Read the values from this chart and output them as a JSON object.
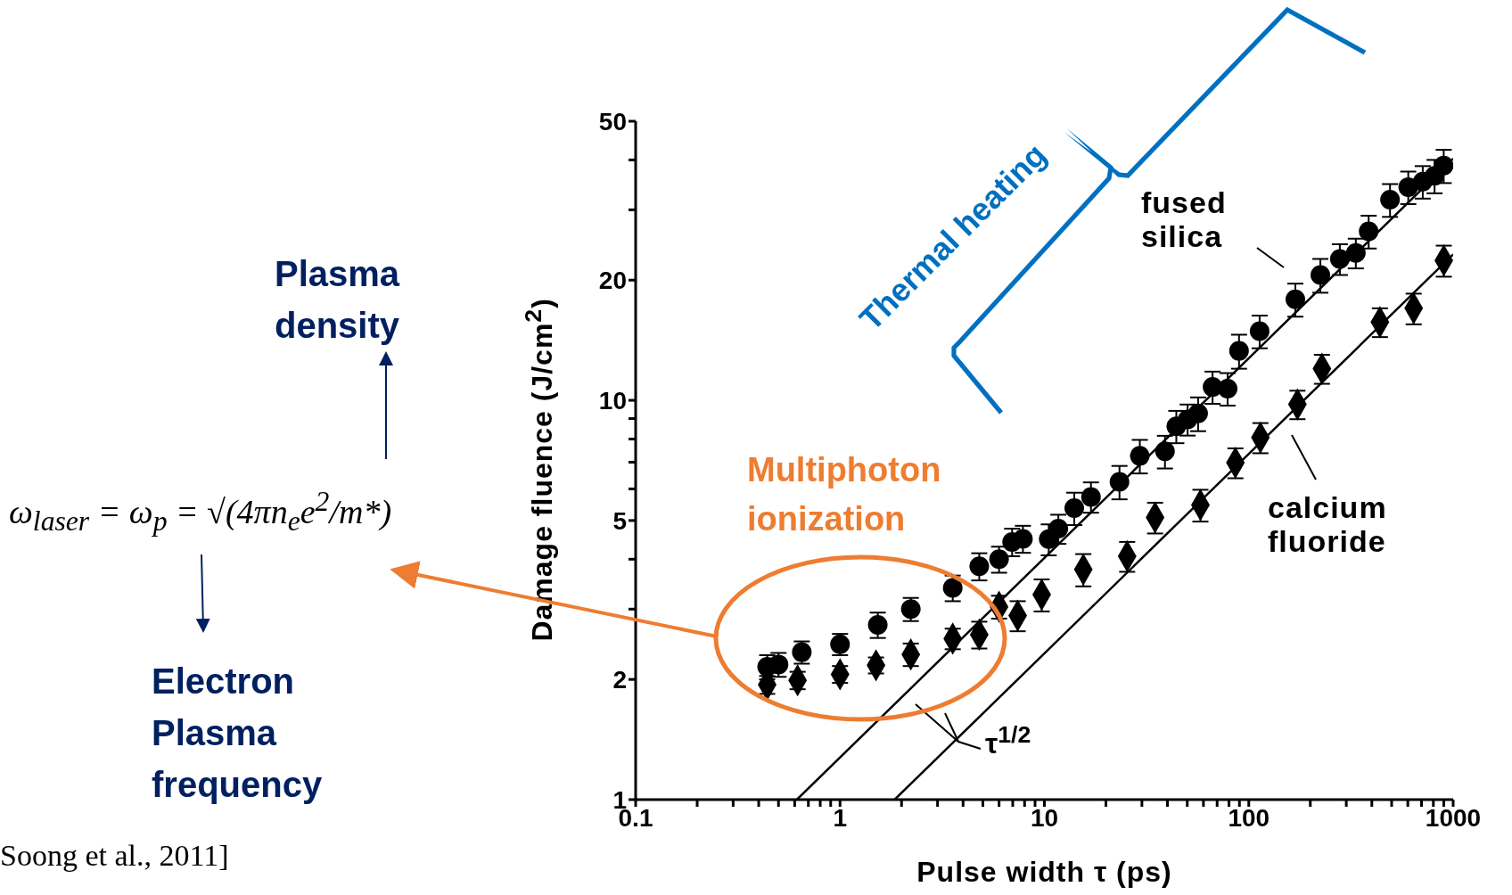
{
  "chart_data": {
    "type": "scatter",
    "xlabel": "Pulse width τ (ps)",
    "ylabel": "Damage fluence (J/cm$^{2}$)",
    "log": "xy",
    "xlim": [
      0.1,
      1000
    ],
    "ylim": [
      1,
      50
    ],
    "xticks": [
      0.1,
      {
        "value": 0.2,
        "label": null
      },
      {
        "value": 0.3,
        "label": null
      },
      {
        "value": 0.4,
        "label": null
      },
      {
        "value": 0.5,
        "label": null
      },
      {
        "value": 0.6,
        "label": null
      },
      {
        "value": 0.7,
        "label": null
      },
      {
        "value": 0.8,
        "label": null
      },
      {
        "value": 0.9,
        "label": null
      },
      1,
      {
        "value": 2,
        "label": null
      },
      {
        "value": 3,
        "label": null
      },
      {
        "value": 4,
        "label": null
      },
      {
        "value": 5,
        "label": null
      },
      {
        "value": 6,
        "label": null
      },
      {
        "value": 7,
        "label": null
      },
      {
        "value": 8,
        "label": null
      },
      {
        "value": 9,
        "label": null
      },
      10,
      {
        "value": 20,
        "label": null
      },
      {
        "value": 30,
        "label": null
      },
      {
        "value": 40,
        "label": null
      },
      {
        "value": 50,
        "label": null
      },
      {
        "value": 60,
        "label": null
      },
      {
        "value": 70,
        "label": null
      },
      {
        "value": 80,
        "label": null
      },
      {
        "value": 90,
        "label": null
      },
      100,
      {
        "value": 200,
        "label": null
      },
      {
        "value": 300,
        "label": null
      },
      {
        "value": 400,
        "label": null
      },
      {
        "value": 500,
        "label": null
      },
      {
        "value": 600,
        "label": null
      },
      {
        "value": 700,
        "label": null
      },
      {
        "value": 800,
        "label": null
      },
      {
        "value": 900,
        "label": null
      },
      1000
    ],
    "yticks": [
      1,
      2,
      {
        "value": 3,
        "label": null
      },
      {
        "value": 4,
        "label": null
      },
      5,
      {
        "value": 6,
        "label": null
      },
      {
        "value": 7,
        "label": null
      },
      {
        "value": 8,
        "label": null
      },
      {
        "value": 9,
        "label": null
      },
      10,
      20,
      {
        "value": 30,
        "label": null
      },
      {
        "value": 40,
        "label": null
      },
      50
    ],
    "series": [
      {
        "name": "fused silica",
        "marker": "circle",
        "color": "#000000",
        "x": [
          0.44,
          0.5,
          0.65,
          1.0,
          1.53,
          2.22,
          3.56,
          4.8,
          6.0,
          6.95,
          7.85,
          10.5,
          11.7,
          14.0,
          16.9,
          23.3,
          29.3,
          38.9,
          44.2,
          50.2,
          56.5,
          66.5,
          78.8,
          89.6,
          113,
          169,
          224,
          279,
          334,
          386,
          491,
          603,
          710,
          811,
          899
        ],
        "values": [
          2.15,
          2.18,
          2.34,
          2.45,
          2.74,
          3.0,
          3.39,
          3.84,
          4.0,
          4.42,
          4.5,
          4.49,
          4.77,
          5.37,
          5.73,
          6.25,
          7.26,
          7.45,
          8.61,
          8.96,
          9.27,
          10.8,
          10.7,
          13.3,
          14.9,
          17.9,
          20.6,
          22.6,
          23.4,
          26.5,
          31.8,
          34.2,
          35.3,
          36.5,
          38.7
        ],
        "errors": [
          0.15,
          0.15,
          0.15,
          0.15,
          0.2,
          0.2,
          0.25,
          0.3,
          0.3,
          0.35,
          0.35,
          0.4,
          0.4,
          0.5,
          0.5,
          0.6,
          0.7,
          0.7,
          0.8,
          0.8,
          0.9,
          1,
          1,
          1.3,
          1.4,
          1.7,
          2,
          2,
          2,
          2.5,
          3,
          3.2,
          3.3,
          3.5,
          3.7
        ]
      },
      {
        "name": "calcium fluoride",
        "marker": "diamond",
        "color": "#000000",
        "x": [
          0.44,
          0.62,
          1.0,
          1.5,
          2.22,
          3.56,
          4.8,
          6.0,
          7.4,
          9.7,
          15.5,
          25.4,
          34.8,
          58,
          86,
          114,
          173,
          228,
          438,
          641,
          900
        ],
        "values": [
          1.94,
          1.99,
          2.06,
          2.17,
          2.31,
          2.53,
          2.59,
          3.04,
          2.89,
          3.26,
          3.77,
          4.07,
          5.09,
          5.47,
          6.98,
          8.07,
          9.77,
          12.0,
          15.7,
          17.0,
          22.4
        ],
        "errors": [
          0.1,
          0.1,
          0.1,
          0.1,
          0.15,
          0.15,
          0.2,
          0.2,
          0.25,
          0.3,
          0.35,
          0.35,
          0.45,
          0.5,
          0.6,
          0.7,
          0.8,
          1,
          1.3,
          1.5,
          2
        ]
      },
      {
        "type": "line",
        "line_style": "solid",
        "color": "#000000",
        "x": [
          0.615,
          1000
        ],
        "values": [
          1,
          40.3
        ]
      },
      {
        "type": "line",
        "line_style": "solid",
        "color": "#000000",
        "x": [
          1.85,
          1000
        ],
        "values": [
          1,
          23.2
        ]
      }
    ],
    "annotations": [
      "τ$^{1/2}$",
      "Multiphoton ionization",
      "Thermal heating",
      "Plasma density",
      "Electron Plasma frequency",
      "ω$_{laser}$ = ω$_{p}$ = √(4πn$_{e}$e$^{2}$/m*)",
      "Soong et al., 2011]"
    ]
  }
}
